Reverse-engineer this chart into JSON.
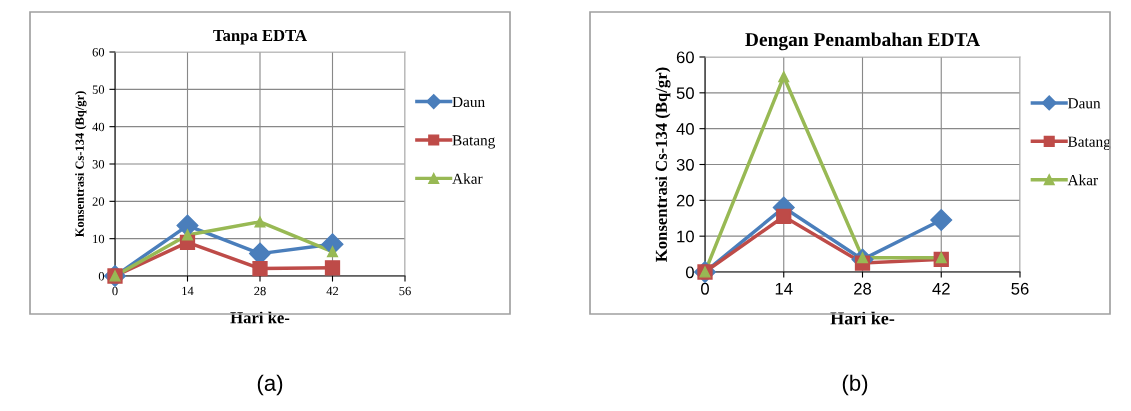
{
  "chart_data": [
    {
      "type": "line",
      "title": "Tanpa EDTA",
      "xlabel": "Hari ke-",
      "ylabel": "Konsentrasi Cs-134 (Bq/gr)",
      "x": [
        0,
        14,
        28,
        42
      ],
      "xlim": [
        0,
        56
      ],
      "xticks": [
        0,
        14,
        28,
        42,
        56
      ],
      "ylim": [
        0,
        60
      ],
      "yticks": [
        0,
        10,
        20,
        30,
        40,
        50,
        60
      ],
      "grid": true,
      "legend": "right",
      "line_style": "solid",
      "annotations": [
        "(a)"
      ],
      "series": [
        {
          "name": "Daun",
          "color": "#4a7ebb",
          "marker": "diamond",
          "values": [
            0,
            13.5,
            6,
            8.5
          ]
        },
        {
          "name": "Batang",
          "color": "#be4b48",
          "marker": "square",
          "values": [
            0,
            9,
            2,
            2.2
          ]
        },
        {
          "name": "Akar",
          "color": "#98b954",
          "marker": "triangle",
          "values": [
            0,
            11,
            14.5,
            6.5
          ]
        }
      ]
    },
    {
      "type": "line",
      "title": "Dengan Penambahan EDTA",
      "xlabel": "Hari ke-",
      "ylabel": "Konsentrasi Cs-134 (Bq/gr)",
      "x": [
        0,
        14,
        28,
        42
      ],
      "xlim": [
        0,
        56
      ],
      "xticks": [
        0,
        14,
        28,
        42,
        56
      ],
      "ylim": [
        0,
        60
      ],
      "yticks": [
        0,
        10,
        20,
        30,
        40,
        50,
        60
      ],
      "grid": true,
      "legend": "right",
      "line_style": "solid",
      "annotations": [
        "(b)"
      ],
      "series": [
        {
          "name": "Daun",
          "color": "#4a7ebb",
          "marker": "diamond",
          "values": [
            0,
            18,
            3.5,
            14.5
          ]
        },
        {
          "name": "Batang",
          "color": "#be4b48",
          "marker": "square",
          "values": [
            0,
            15.5,
            2.5,
            3.5
          ]
        },
        {
          "name": "Akar",
          "color": "#98b954",
          "marker": "triangle",
          "values": [
            0,
            54.5,
            4,
            4
          ]
        }
      ]
    }
  ]
}
